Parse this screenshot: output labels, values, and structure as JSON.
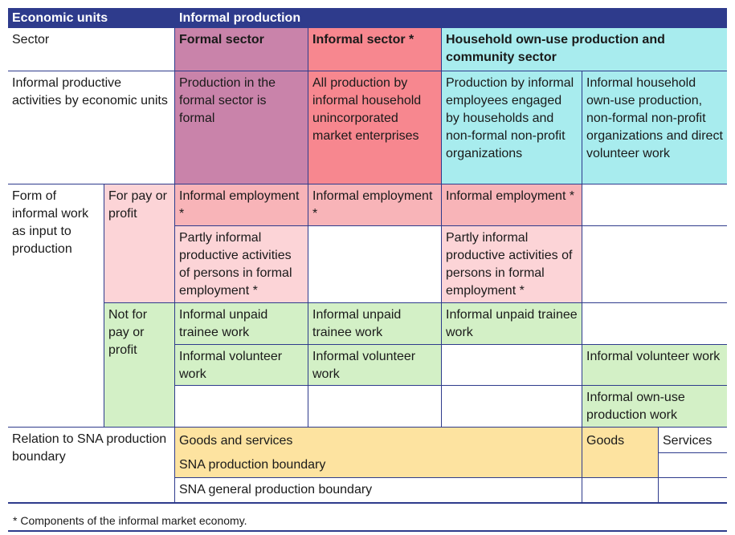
{
  "header": {
    "economic_units": "Economic units",
    "informal_production": "Informal production"
  },
  "sector_row": {
    "label": "Sector",
    "formal": "Formal sector",
    "informal": "Informal sector *",
    "household": "Household own-use production and community sector"
  },
  "activities_row": {
    "label": "Informal productive activities by economic units",
    "formal": "Production in the formal sector is formal",
    "informal": "All production by informal household unincorporated market enterprises",
    "household_a": "Production by informal employees engaged by households and non-formal non-profit organizations",
    "household_b": "Informal household own-use production, non-formal non-profit organizations and direct volunteer work"
  },
  "form_rows": {
    "label": "Form of informal work as input to production",
    "for_pay": "For pay or profit",
    "not_for_pay": "Not for pay or profit",
    "informal_employment": "Informal employment *",
    "partly_informal": "Partly informal productive activities of persons in formal employment *",
    "unpaid_trainee": "Informal unpaid trainee work",
    "volunteer": "Informal volunteer work",
    "own_use": "Informal own-use production work"
  },
  "sna_row": {
    "label": "Relation to SNA production boundary",
    "goods_and_services": "Goods and services",
    "sna_boundary": "SNA production boundary",
    "sna_general": "SNA general production boundary",
    "goods": "Goods",
    "services": "Services"
  },
  "footnote": "* Components of the informal market economy."
}
